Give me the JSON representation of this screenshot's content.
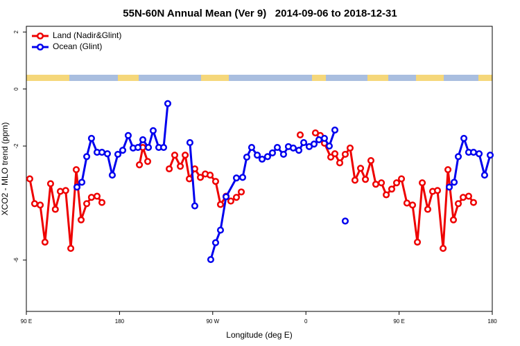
{
  "chart_data": {
    "type": "line",
    "title": "55N-60N Annual Mean (Ver 9)   2014-09-06 to 2018-12-31",
    "x_label": "Longitude (deg E)",
    "y_label": "XCO2 - MLO trend (ppm)",
    "xlim": [
      90,
      540
    ],
    "xticks": [
      {
        "value": 90,
        "label": "90 E"
      },
      180,
      {
        "value": 270,
        "label": "90 W"
      },
      {
        "value": 360,
        "label": "0"
      },
      {
        "value": 450,
        "label": "90 E"
      },
      {
        "value": 540,
        "label": "180"
      }
    ],
    "ylim": [
      -7.8,
      2.2
    ],
    "yticks": [
      -6,
      -2,
      0,
      2
    ],
    "grid": false,
    "legend": "top-left",
    "series": [
      {
        "name": "Land (Nadir&Glint)",
        "color": "#ee0000",
        "x": [
          93.3,
          98.0,
          103.4,
          108.0,
          113.4,
          118.0,
          122.8,
          128.0,
          132.9,
          138.2,
          142.9,
          148.3,
          152.9,
          158.3,
          163.0,
          null,
          199.2,
          202.5,
          207.2,
          null,
          228.0,
          233.3,
          238.7,
          243.4,
          247.4,
          252.7,
          258.1,
          262.8,
          267.5,
          272.8,
          277.5,
          282.9,
          287.5,
          292.9,
          297.6,
          null,
          354.5,
          null,
          369.2,
          373.9,
          377.9,
          384.0,
          388.0,
          392.7,
          398.0,
          402.7,
          407.4,
          412.8,
          417.5,
          422.8,
          427.5,
          432.9,
          437.6,
          442.9,
          447.6,
          452.3,
          457.6,
          463.0,
          467.7,
          472.4,
          477.7,
          482.4,
          487.1,
          492.5,
          497.2,
          502.5,
          507.2,
          511.9,
          517.2,
          521.9
        ],
        "values": [
          -3.15,
          -4.02,
          -4.07,
          -5.37,
          -3.32,
          -4.22,
          -3.59,
          -3.56,
          -5.59,
          -2.83,
          -4.59,
          -4.02,
          -3.8,
          -3.76,
          -3.98,
          null,
          -2.66,
          -2.05,
          -2.54,
          null,
          -2.8,
          -2.32,
          -2.71,
          -2.32,
          -3.15,
          -2.8,
          -3.1,
          -2.98,
          -3.02,
          -3.24,
          -4.05,
          -3.76,
          -3.93,
          -3.8,
          -3.61,
          null,
          -1.61,
          null,
          -1.54,
          -1.63,
          -1.9,
          -2.39,
          -2.27,
          -2.59,
          -2.29,
          -2.07,
          -3.2,
          -2.78,
          -3.17,
          -2.51,
          -3.34,
          -3.29,
          -3.71,
          -3.51,
          -3.29,
          -3.15,
          -4.0,
          -4.07,
          -5.37,
          -3.29,
          -4.22,
          -3.59,
          -3.56,
          -5.59,
          -2.83,
          -4.59,
          -4.02,
          -3.8,
          -3.76,
          -3.98
        ]
      },
      {
        "name": "Ocean (Glint)",
        "color": "#0000ee",
        "x": [
          138.9,
          143.6,
          148.3,
          152.9,
          158.3,
          163.0,
          168.3,
          173.0,
          178.4,
          183.1,
          188.4,
          193.1,
          197.8,
          202.5,
          207.9,
          212.5,
          217.9,
          222.6,
          226.6,
          null,
          248.0,
          252.7,
          null,
          268.1,
          272.8,
          277.5,
          282.9,
          292.9,
          298.9,
          302.9,
          307.6,
          313.0,
          317.7,
          323.0,
          327.7,
          332.4,
          338.4,
          343.1,
          347.8,
          353.2,
          357.9,
          363.2,
          367.9,
          372.6,
          377.9,
          382.6,
          388.0,
          null,
          398.0,
          null,
          498.5,
          503.2,
          507.2,
          512.6,
          517.2,
          521.9,
          527.3,
          532.6,
          538.0
        ],
        "values": [
          -3.44,
          -3.27,
          -2.37,
          -1.73,
          -2.22,
          -2.22,
          -2.27,
          -3.02,
          -2.29,
          -2.15,
          -1.63,
          -2.07,
          -2.05,
          -1.78,
          -2.05,
          -1.46,
          -2.05,
          -2.05,
          -0.51,
          null,
          -1.88,
          -4.1,
          null,
          -5.98,
          -5.39,
          -4.95,
          -3.78,
          -3.12,
          -3.1,
          -2.39,
          -2.05,
          -2.32,
          -2.46,
          -2.37,
          -2.24,
          -2.05,
          -2.29,
          -2.02,
          -2.07,
          -2.15,
          -1.88,
          -2.02,
          -1.93,
          -1.78,
          -1.73,
          -2.0,
          -1.44,
          null,
          -4.63,
          null,
          -3.44,
          -3.27,
          -2.37,
          -1.73,
          -2.22,
          -2.22,
          -2.27,
          -3.02,
          -2.32
        ]
      }
    ]
  }
}
